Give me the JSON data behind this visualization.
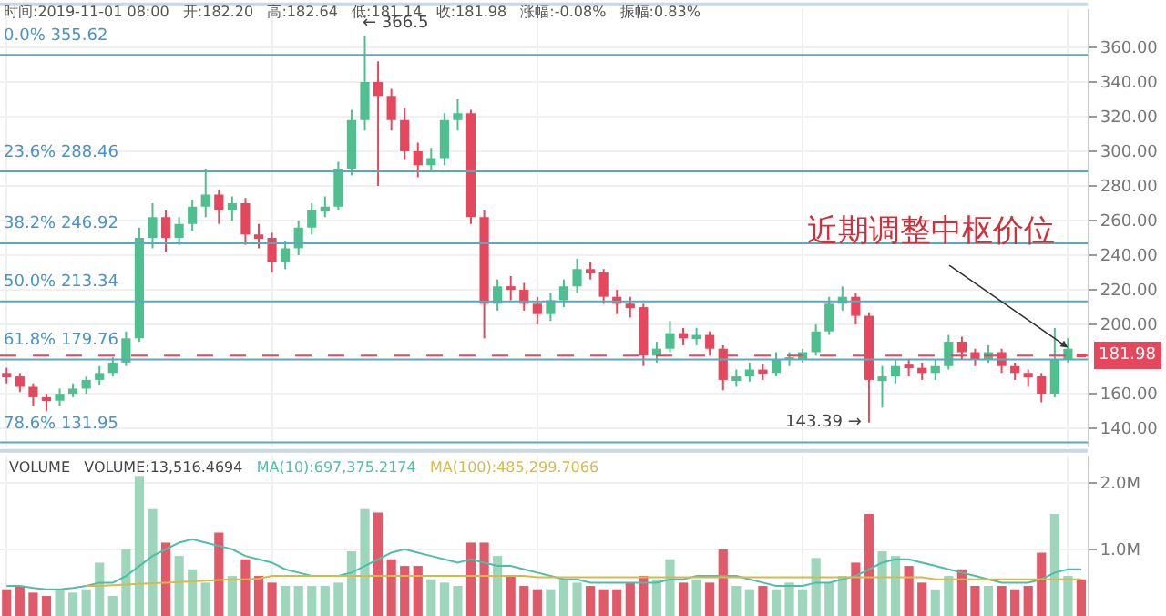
{
  "chart_data": [
    {
      "type": "candlestick",
      "categories": [
        null,
        null,
        null,
        null,
        null,
        null,
        null,
        null,
        null,
        null,
        null,
        null,
        null,
        null,
        null,
        null,
        null,
        null,
        null,
        null,
        null,
        null,
        null,
        null,
        null,
        null,
        null,
        null,
        null,
        null,
        null,
        null,
        null,
        null,
        null,
        null,
        null,
        null,
        null,
        null,
        null,
        null,
        null,
        null,
        null,
        null,
        null,
        null,
        null,
        null,
        null,
        null,
        null,
        null,
        null,
        null,
        null,
        null,
        null,
        null,
        null,
        null,
        null,
        null,
        null,
        null,
        null,
        null,
        null,
        null,
        null,
        null,
        null,
        null,
        null,
        null,
        null,
        null,
        null,
        null,
        null,
        null
      ],
      "ohlc": [
        [
          172,
          175,
          166,
          170
        ],
        [
          170,
          172,
          161,
          164
        ],
        [
          164,
          166,
          153,
          158
        ],
        [
          158,
          160,
          150,
          156
        ],
        [
          156,
          163,
          153,
          160
        ],
        [
          160,
          166,
          158,
          163
        ],
        [
          163,
          170,
          160,
          168
        ],
        [
          168,
          176,
          165,
          172
        ],
        [
          172,
          181,
          170,
          178
        ],
        [
          178,
          196,
          176,
          192
        ],
        [
          192,
          256,
          190,
          250
        ],
        [
          250,
          270,
          244,
          262
        ],
        [
          262,
          266,
          242,
          250
        ],
        [
          250,
          262,
          246,
          258
        ],
        [
          258,
          272,
          254,
          268
        ],
        [
          268,
          290,
          262,
          275
        ],
        [
          275,
          278,
          258,
          266
        ],
        [
          266,
          274,
          260,
          270
        ],
        [
          270,
          273,
          246,
          252
        ],
        [
          252,
          258,
          244,
          250
        ],
        [
          250,
          253,
          230,
          236
        ],
        [
          236,
          248,
          232,
          244
        ],
        [
          244,
          260,
          240,
          256
        ],
        [
          256,
          270,
          252,
          266
        ],
        [
          266,
          274,
          262,
          268
        ],
        [
          268,
          294,
          266,
          290
        ],
        [
          290,
          324,
          286,
          318
        ],
        [
          318,
          366.5,
          312,
          340
        ],
        [
          340,
          352,
          280,
          332
        ],
        [
          332,
          336,
          312,
          318
        ],
        [
          318,
          325,
          295,
          300
        ],
        [
          300,
          305,
          285,
          292
        ],
        [
          292,
          302,
          288,
          296
        ],
        [
          296,
          322,
          292,
          318
        ],
        [
          318,
          330,
          312,
          322
        ],
        [
          322,
          324,
          258,
          262
        ],
        [
          262,
          266,
          192,
          212
        ],
        [
          212,
          226,
          208,
          222
        ],
        [
          222,
          228,
          214,
          220
        ],
        [
          220,
          224,
          208,
          212
        ],
        [
          212,
          216,
          200,
          206
        ],
        [
          206,
          218,
          202,
          214
        ],
        [
          214,
          226,
          210,
          222
        ],
        [
          222,
          238,
          218,
          232
        ],
        [
          232,
          236,
          226,
          230
        ],
        [
          230,
          232,
          212,
          216
        ],
        [
          216,
          220,
          206,
          212
        ],
        [
          212,
          216,
          204,
          210
        ],
        [
          210,
          212,
          176,
          182
        ],
        [
          182,
          190,
          178,
          186
        ],
        [
          186,
          202,
          184,
          195
        ],
        [
          195,
          198,
          188,
          192
        ],
        [
          192,
          198,
          188,
          194
        ],
        [
          194,
          196,
          182,
          186
        ],
        [
          186,
          188,
          162,
          168
        ],
        [
          168,
          174,
          164,
          170
        ],
        [
          170,
          178,
          167,
          174
        ],
        [
          174,
          177,
          168,
          172
        ],
        [
          172,
          184,
          170,
          180
        ],
        [
          180,
          184,
          176,
          181
        ],
        [
          180,
          186,
          178,
          184
        ],
        [
          184,
          200,
          182,
          196
        ],
        [
          196,
          216,
          194,
          212
        ],
        [
          212,
          222,
          208,
          216
        ],
        [
          216,
          218,
          200,
          205
        ],
        [
          205,
          207,
          143.39,
          168
        ],
        [
          168,
          176,
          152,
          170
        ],
        [
          170,
          180,
          166,
          176
        ],
        [
          176,
          180,
          170,
          175
        ],
        [
          175,
          178,
          168,
          172
        ],
        [
          172,
          180,
          168,
          176
        ],
        [
          176,
          194,
          174,
          190
        ],
        [
          190,
          193,
          180,
          184
        ],
        [
          184,
          186,
          176,
          180
        ],
        [
          180,
          188,
          178,
          184
        ],
        [
          184,
          186,
          172,
          176
        ],
        [
          176,
          178,
          168,
          172
        ],
        [
          172,
          174,
          164,
          170
        ],
        [
          170,
          172,
          155,
          160
        ],
        [
          160,
          198,
          158,
          180
        ],
        [
          180,
          192,
          178,
          186
        ],
        [
          182.2,
          182.64,
          181.14,
          181.98
        ]
      ],
      "colors": [
        "#e5485c",
        "#e5485c",
        "#e5485c",
        "#e5485c",
        "#4fbf8f",
        "#4fbf8f",
        "#4fbf8f",
        "#4fbf8f",
        "#4fbf8f",
        "#4fbf8f",
        "#4fbf8f",
        "#4fbf8f",
        "#e5485c",
        "#4fbf8f",
        "#4fbf8f",
        "#4fbf8f",
        "#e5485c",
        "#4fbf8f",
        "#e5485c",
        "#e5485c",
        "#e5485c",
        "#4fbf8f",
        "#4fbf8f",
        "#4fbf8f",
        "#4fbf8f",
        "#4fbf8f",
        "#4fbf8f",
        "#4fbf8f",
        "#e5485c",
        "#e5485c",
        "#e5485c",
        "#e5485c",
        "#4fbf8f",
        "#4fbf8f",
        "#4fbf8f",
        "#e5485c",
        "#e5485c",
        "#4fbf8f",
        "#e5485c",
        "#e5485c",
        "#e5485c",
        "#4fbf8f",
        "#4fbf8f",
        "#4fbf8f",
        "#e5485c",
        "#e5485c",
        "#e5485c",
        "#e5485c",
        "#e5485c",
        "#4fbf8f",
        "#4fbf8f",
        "#e5485c",
        "#4fbf8f",
        "#e5485c",
        "#e5485c",
        "#4fbf8f",
        "#4fbf8f",
        "#e5485c",
        "#4fbf8f",
        "#4fbf8f",
        "#4fbf8f",
        "#4fbf8f",
        "#4fbf8f",
        "#4fbf8f",
        "#e5485c",
        "#e5485c",
        "#4fbf8f",
        "#4fbf8f",
        "#e5485c",
        "#e5485c",
        "#4fbf8f",
        "#4fbf8f",
        "#e5485c",
        "#e5485c",
        "#4fbf8f",
        "#e5485c",
        "#e5485c",
        "#e5485c",
        "#e5485c",
        "#4fbf8f",
        "#4fbf8f",
        "#e5485c"
      ],
      "ylim": [
        129.5,
        382
      ],
      "yticks": [
        {
          "value": 140,
          "label": "140.00"
        },
        {
          "value": 160,
          "label": "160.00"
        },
        {
          "value": 200,
          "label": "200.00"
        },
        {
          "value": 220,
          "label": "220.00"
        },
        {
          "value": 240,
          "label": "240.00"
        },
        {
          "value": 260,
          "label": "260.00"
        },
        {
          "value": 280,
          "label": "280.00"
        },
        {
          "value": 300,
          "label": "300.00"
        },
        {
          "value": 320,
          "label": "320.00"
        },
        {
          "value": 340,
          "label": "340.00"
        },
        {
          "value": 360,
          "label": "360.00"
        }
      ],
      "tick_labels": "y",
      "grid": true,
      "ref_lines": [
        {
          "axis": "y",
          "value": 355.62,
          "label": "0.0% 355.62",
          "color": "#5aa9bd"
        },
        {
          "axis": "y",
          "value": 288.46,
          "label": "23.6% 288.46",
          "color": "#5aa9bd"
        },
        {
          "axis": "y",
          "value": 246.92,
          "label": "38.2% 246.92",
          "color": "#5aa9bd"
        },
        {
          "axis": "y",
          "value": 213.34,
          "label": "50.0% 213.34",
          "color": "#5aa9bd"
        },
        {
          "axis": "y",
          "value": 179.76,
          "label": "61.8% 179.76",
          "color": "#5aa9bd"
        },
        {
          "axis": "y",
          "value": 131.95,
          "label": "78.6% 131.95",
          "color": "#5aa9bd"
        },
        {
          "axis": "y",
          "value": 181.98,
          "label": "181.98",
          "color": "#e5485c",
          "line_style": "dashed"
        }
      ],
      "annotations": [
        "时间:2019-11-01 08:00   开:182.20   高:182.64   低:181.14   收:181.98   涨幅:-0.08%   振幅:0.83%",
        "近期调整中枢价位",
        "← 366.5",
        "143.39 →"
      ]
    },
    {
      "type": "bar",
      "categories": [
        null,
        null,
        null,
        null,
        null,
        null,
        null,
        null,
        null,
        null,
        null,
        null,
        null,
        null,
        null,
        null,
        null,
        null,
        null,
        null,
        null,
        null,
        null,
        null,
        null,
        null,
        null,
        null,
        null,
        null,
        null,
        null,
        null,
        null,
        null,
        null,
        null,
        null,
        null,
        null,
        null,
        null,
        null,
        null,
        null,
        null,
        null,
        null,
        null,
        null,
        null,
        null,
        null,
        null,
        null,
        null,
        null,
        null,
        null,
        null,
        null,
        null,
        null,
        null,
        null,
        null,
        null,
        null,
        null,
        null,
        null,
        null,
        null,
        null,
        null,
        null,
        null,
        null,
        null,
        null,
        null,
        null
      ],
      "series": [
        {
          "type": "bar",
          "values": [
            0.4,
            0.45,
            0.35,
            0.3,
            0.4,
            0.35,
            0.4,
            0.8,
            0.3,
            1.0,
            2.1,
            1.6,
            1.1,
            0.9,
            0.7,
            0.5,
            1.25,
            0.6,
            0.85,
            0.6,
            0.5,
            0.45,
            0.45,
            0.45,
            0.45,
            0.5,
            0.97,
            1.6,
            1.55,
            0.85,
            0.75,
            0.75,
            0.55,
            0.5,
            0.45,
            1.1,
            1.1,
            0.9,
            0.6,
            0.45,
            0.4,
            0.4,
            0.55,
            0.5,
            0.45,
            0.4,
            0.4,
            0.5,
            0.6,
            0.55,
            0.85,
            0.5,
            0.55,
            0.5,
            1.0,
            0.45,
            0.4,
            0.45,
            0.4,
            0.5,
            0.4,
            0.87,
            0.5,
            0.6,
            0.8,
            1.53,
            0.97,
            0.9,
            0.75,
            0.5,
            0.4,
            0.6,
            0.7,
            0.45,
            0.45,
            0.45,
            0.4,
            0.45,
            0.95,
            1.53,
            0.6,
            0.55
          ],
          "colors": [
            "#e05a6a",
            "#e05a6a",
            "#e05a6a",
            "#e05a6a",
            "#9ed6bb",
            "#9ed6bb",
            "#9ed6bb",
            "#9ed6bb",
            "#9ed6bb",
            "#9ed6bb",
            "#9ed6bb",
            "#9ed6bb",
            "#e05a6a",
            "#9ed6bb",
            "#9ed6bb",
            "#9ed6bb",
            "#e05a6a",
            "#9ed6bb",
            "#e05a6a",
            "#e05a6a",
            "#e05a6a",
            "#9ed6bb",
            "#9ed6bb",
            "#9ed6bb",
            "#9ed6bb",
            "#9ed6bb",
            "#9ed6bb",
            "#9ed6bb",
            "#e05a6a",
            "#e05a6a",
            "#e05a6a",
            "#e05a6a",
            "#9ed6bb",
            "#9ed6bb",
            "#9ed6bb",
            "#e05a6a",
            "#e05a6a",
            "#9ed6bb",
            "#e05a6a",
            "#e05a6a",
            "#e05a6a",
            "#9ed6bb",
            "#9ed6bb",
            "#9ed6bb",
            "#e05a6a",
            "#e05a6a",
            "#e05a6a",
            "#e05a6a",
            "#e05a6a",
            "#9ed6bb",
            "#9ed6bb",
            "#e05a6a",
            "#9ed6bb",
            "#e05a6a",
            "#e05a6a",
            "#9ed6bb",
            "#9ed6bb",
            "#e05a6a",
            "#9ed6bb",
            "#9ed6bb",
            "#9ed6bb",
            "#9ed6bb",
            "#9ed6bb",
            "#9ed6bb",
            "#e05a6a",
            "#e05a6a",
            "#9ed6bb",
            "#9ed6bb",
            "#e05a6a",
            "#e05a6a",
            "#9ed6bb",
            "#9ed6bb",
            "#e05a6a",
            "#e05a6a",
            "#9ed6bb",
            "#e05a6a",
            "#e05a6a",
            "#e05a6a",
            "#e05a6a",
            "#9ed6bb",
            "#9ed6bb",
            "#e05a6a"
          ]
        },
        {
          "type": "line",
          "name": "MA(10):697,375.2174",
          "color": "#4dbfa8",
          "values": [
            0.45,
            0.45,
            0.42,
            0.4,
            0.4,
            0.42,
            0.45,
            0.5,
            0.5,
            0.6,
            0.75,
            0.9,
            1.0,
            1.1,
            1.15,
            1.1,
            1.05,
            1.0,
            0.9,
            0.85,
            0.8,
            0.7,
            0.65,
            0.6,
            0.6,
            0.6,
            0.65,
            0.75,
            0.85,
            0.95,
            1.0,
            0.95,
            0.9,
            0.85,
            0.8,
            0.85,
            0.8,
            0.75,
            0.75,
            0.7,
            0.65,
            0.6,
            0.55,
            0.55,
            0.5,
            0.5,
            0.5,
            0.5,
            0.5,
            0.5,
            0.55,
            0.55,
            0.6,
            0.6,
            0.6,
            0.6,
            0.55,
            0.5,
            0.45,
            0.45,
            0.45,
            0.5,
            0.5,
            0.55,
            0.6,
            0.7,
            0.8,
            0.85,
            0.85,
            0.8,
            0.75,
            0.7,
            0.65,
            0.6,
            0.55,
            0.5,
            0.5,
            0.5,
            0.55,
            0.65,
            0.7,
            0.7
          ]
        },
        {
          "type": "line",
          "name": "MA(100):485,299.7066",
          "color": "#d9b84a",
          "values": [
            null,
            null,
            null,
            null,
            null,
            null,
            0.45,
            0.45,
            0.46,
            0.47,
            0.48,
            0.49,
            0.5,
            0.51,
            0.52,
            0.53,
            0.54,
            0.55,
            0.55,
            0.56,
            0.6,
            0.6,
            0.6,
            0.6,
            0.6,
            0.6,
            0.6,
            0.6,
            0.6,
            0.6,
            0.6,
            0.6,
            0.6,
            0.6,
            0.6,
            0.6,
            0.6,
            0.6,
            0.6,
            0.6,
            0.58,
            0.58,
            0.58,
            0.58,
            0.58,
            0.58,
            0.58,
            0.58,
            0.58,
            0.58,
            0.58,
            0.58,
            0.58,
            0.58,
            0.58,
            0.58,
            0.58,
            0.58,
            0.58,
            0.58,
            0.58,
            0.58,
            0.58,
            0.58,
            0.58,
            0.58,
            0.58,
            0.58,
            0.58,
            0.58,
            0.55,
            0.55,
            0.55,
            0.55,
            0.55,
            0.55,
            0.55,
            0.55,
            0.55,
            0.55,
            0.55,
            0.55
          ]
        }
      ],
      "ylim": [
        0,
        2.4
      ],
      "yticks": [
        {
          "value": 1,
          "label": "1.0M"
        },
        {
          "value": 2,
          "label": "2.0M"
        }
      ],
      "tick_labels": "y",
      "grid": true,
      "annotations": [
        "VOLUME",
        "VOLUME:13,516.4694"
      ]
    }
  ]
}
